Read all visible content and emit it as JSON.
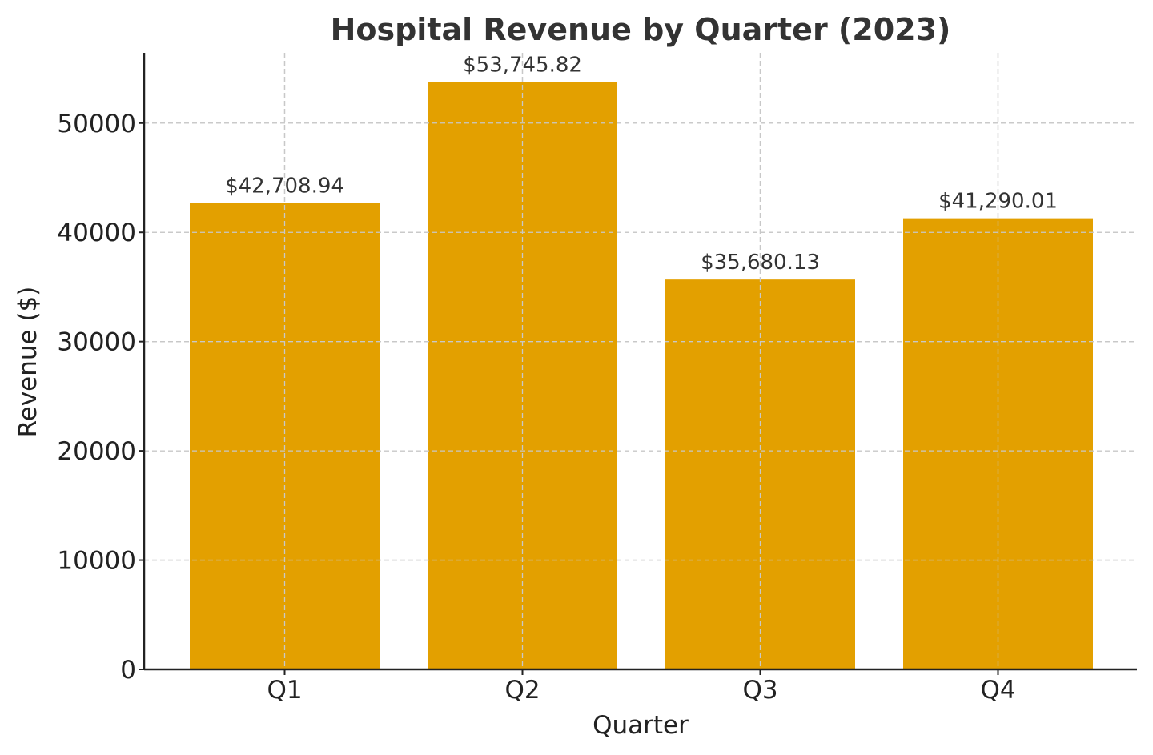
{
  "chart_data": {
    "type": "bar",
    "title": "Hospital Revenue by Quarter (2023)",
    "xlabel": "Quarter",
    "ylabel": "Revenue ($)",
    "categories": [
      "Q1",
      "Q2",
      "Q3",
      "Q4"
    ],
    "values": [
      42708.94,
      53745.82,
      35680.13,
      41290.01
    ],
    "data_labels": [
      "$42,708.94",
      "$53,745.82",
      "$35,680.13",
      "$41,290.01"
    ],
    "yticks": [
      0,
      10000,
      20000,
      30000,
      40000,
      50000
    ],
    "ytick_labels": [
      "0",
      "10000",
      "20000",
      "30000",
      "40000",
      "50000"
    ],
    "ylim": [
      0,
      56433
    ],
    "grid": true,
    "legend": "none",
    "bar_color": "#e3a000",
    "grid_color": "#c8c8c8",
    "axis_color": "#222222",
    "title_color": "#333333"
  }
}
